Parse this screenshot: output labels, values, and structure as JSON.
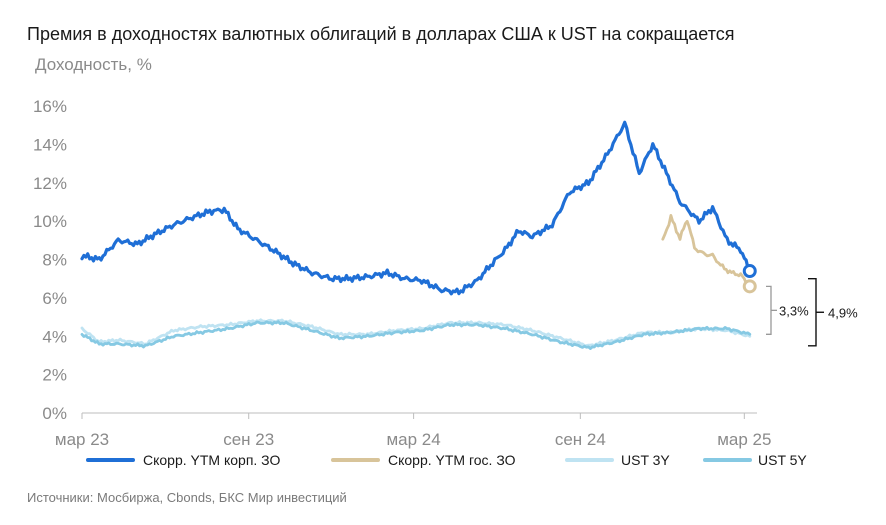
{
  "title": "Премия в доходностях валютных облигаций в долларах США к UST на сокращается",
  "source": "Источники: Мосбиржа, Cbonds, БКС Мир инвестиций",
  "chart_data": {
    "type": "line",
    "title": "Премия в доходностях валютных облигаций в долларах США к UST на сокращается",
    "ylabel": "Доходность, %",
    "xlabel": "",
    "ylim": [
      0,
      16
    ],
    "yticks": [
      0,
      2,
      4,
      6,
      8,
      10,
      12,
      14,
      16
    ],
    "ytick_labels": [
      "0%",
      "2%",
      "4%",
      "6%",
      "8%",
      "10%",
      "12%",
      "14%",
      "16%"
    ],
    "xlim": [
      "2023-03-01",
      "2025-03-15"
    ],
    "xticks": [
      "2023-03-01",
      "2023-09-01",
      "2024-03-01",
      "2024-09-01",
      "2025-03-01"
    ],
    "xtick_labels": [
      "мар 23",
      "сен 23",
      "мар 24",
      "сен 24",
      "мар 25"
    ],
    "grid": false,
    "legend": "bottom",
    "series": [
      {
        "name": "Скорр. YTM корп. ЗО",
        "color": "#1f6fd6",
        "x": [
          "2023-03-01",
          "2023-03-20",
          "2023-04-10",
          "2023-05-01",
          "2023-05-20",
          "2023-06-10",
          "2023-07-01",
          "2023-07-20",
          "2023-08-05",
          "2023-08-20",
          "2023-09-10",
          "2023-10-01",
          "2023-10-20",
          "2023-11-10",
          "2023-12-01",
          "2023-12-20",
          "2024-01-10",
          "2024-02-01",
          "2024-02-20",
          "2024-03-10",
          "2024-04-01",
          "2024-04-20",
          "2024-05-10",
          "2024-05-25",
          "2024-06-10",
          "2024-06-25",
          "2024-07-10",
          "2024-08-01",
          "2024-08-20",
          "2024-09-10",
          "2024-10-01",
          "2024-10-20",
          "2024-11-05",
          "2024-11-20",
          "2024-12-05",
          "2024-12-20",
          "2025-01-10",
          "2025-01-25",
          "2025-02-10",
          "2025-02-25",
          "2025-03-07"
        ],
        "values": [
          8.2,
          8.0,
          9.0,
          8.8,
          9.3,
          9.8,
          10.2,
          10.5,
          10.6,
          9.6,
          9.0,
          8.4,
          7.8,
          7.3,
          7.0,
          7.0,
          7.1,
          7.3,
          7.0,
          6.9,
          6.4,
          6.3,
          6.9,
          7.7,
          8.5,
          9.5,
          9.2,
          9.8,
          11.5,
          12.0,
          13.5,
          15.1,
          12.5,
          14.0,
          12.5,
          11.0,
          10.0,
          10.7,
          9.0,
          8.5,
          7.4
        ]
      },
      {
        "name": "Скорр. YTM гос. ЗО",
        "color": "#d8c49a",
        "x": [
          "2024-12-01",
          "2024-12-10",
          "2024-12-20",
          "2024-12-28",
          "2025-01-05",
          "2025-01-15",
          "2025-01-25",
          "2025-02-05",
          "2025-02-15",
          "2025-02-25",
          "2025-03-07"
        ],
        "values": [
          9.0,
          10.2,
          9.1,
          10.1,
          8.6,
          8.3,
          8.2,
          7.6,
          7.3,
          7.2,
          6.6
        ]
      },
      {
        "name": "UST 3Y",
        "color": "#bfe3f2",
        "x": [
          "2023-03-01",
          "2023-03-20",
          "2023-04-10",
          "2023-05-10",
          "2023-06-10",
          "2023-07-10",
          "2023-08-10",
          "2023-09-10",
          "2023-10-10",
          "2023-11-10",
          "2023-12-10",
          "2024-01-10",
          "2024-02-10",
          "2024-03-10",
          "2024-04-10",
          "2024-05-10",
          "2024-06-10",
          "2024-07-10",
          "2024-08-10",
          "2024-09-10",
          "2024-10-10",
          "2024-11-10",
          "2024-12-10",
          "2025-01-10",
          "2025-02-10",
          "2025-03-07"
        ],
        "values": [
          4.4,
          3.7,
          3.8,
          3.6,
          4.3,
          4.5,
          4.6,
          4.8,
          4.8,
          4.5,
          4.1,
          4.1,
          4.3,
          4.4,
          4.7,
          4.7,
          4.6,
          4.3,
          3.9,
          3.5,
          3.8,
          4.2,
          4.2,
          4.4,
          4.3,
          4.0
        ]
      },
      {
        "name": "UST 5Y",
        "color": "#86c9e3",
        "x": [
          "2023-03-01",
          "2023-03-20",
          "2023-04-10",
          "2023-05-10",
          "2023-06-10",
          "2023-07-10",
          "2023-08-10",
          "2023-09-10",
          "2023-10-10",
          "2023-11-10",
          "2023-12-10",
          "2024-01-10",
          "2024-02-10",
          "2024-03-10",
          "2024-04-10",
          "2024-05-10",
          "2024-06-10",
          "2024-07-10",
          "2024-08-10",
          "2024-09-10",
          "2024-10-10",
          "2024-11-10",
          "2024-12-10",
          "2025-01-10",
          "2025-02-10",
          "2025-03-07"
        ],
        "values": [
          4.1,
          3.6,
          3.6,
          3.5,
          4.0,
          4.2,
          4.4,
          4.7,
          4.7,
          4.3,
          3.9,
          4.0,
          4.2,
          4.3,
          4.6,
          4.6,
          4.4,
          4.1,
          3.7,
          3.4,
          3.7,
          4.1,
          4.2,
          4.4,
          4.4,
          4.1
        ]
      }
    ],
    "annotations": [
      {
        "text": "3,3%",
        "from": 4.1,
        "to": 6.6
      },
      {
        "text": "4,9%",
        "from": 3.5,
        "to": 7.0
      }
    ]
  }
}
